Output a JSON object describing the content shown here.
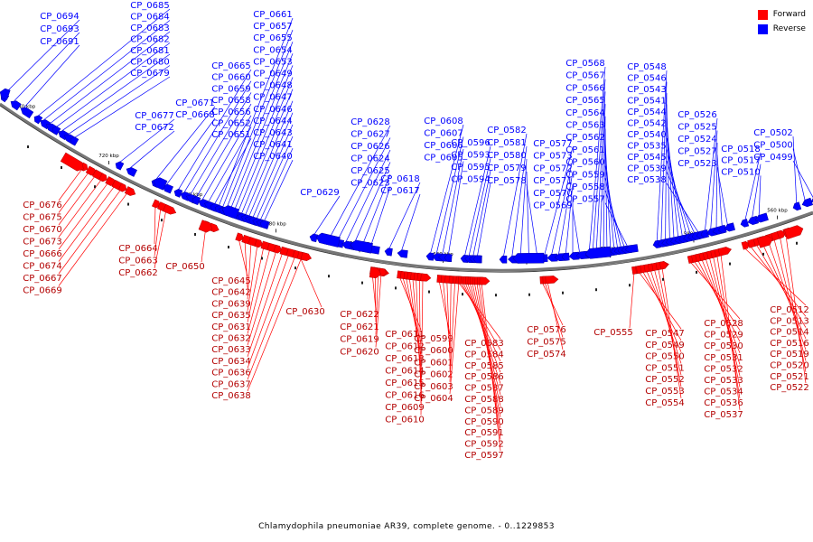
{
  "caption": "Chlamydophila pneumoniae AR39, complete genome. - 0..1229853",
  "legend": [
    {
      "label": "Forward",
      "color": "#ff0000"
    },
    {
      "label": "Reverse",
      "color": "#0000ff"
    }
  ],
  "colors": {
    "forward": "#ff0000",
    "reverse": "#0000ff",
    "forward_dark": "#b30000",
    "reverse_dark": "#0000a8",
    "backbone": "#777777"
  },
  "scale_ticks": [
    "740 kbp",
    "720 kbp",
    "700 kbp",
    "680 kbp",
    "660 kbp",
    "640 kbp",
    "620 kbp",
    "600 kbp",
    "580 kbp",
    "560 kbp"
  ],
  "reverse_groups": [
    [
      "CP_0694",
      "CP_0693",
      "CP_0691"
    ],
    [
      "CP_0685",
      "CP_0684",
      "CP_0683",
      "CP_0682",
      "CP_0681",
      "CP_0680",
      "CP_0679"
    ],
    [
      "CP_0677",
      "CP_0672"
    ],
    [
      "CP_0671",
      "CP_0668"
    ],
    [
      "CP_0665",
      "CP_0660",
      "CP_0659",
      "CP_0658",
      "CP_0656",
      "CP_0652",
      "CP_0651"
    ],
    [
      "CP_0661",
      "CP_0657",
      "CP_0655",
      "CP_0654",
      "CP_0653",
      "CP_0649",
      "CP_0648",
      "CP_0647",
      "CP_0646",
      "CP_0644",
      "CP_0643",
      "CP_0641",
      "CP_0640"
    ],
    [
      "CP_0629"
    ],
    [
      "CP_0628",
      "CP_0627",
      "CP_0626",
      "CP_0624",
      "CP_0625",
      "CP_0623"
    ],
    [
      "CP_0618",
      "CP_0617"
    ],
    [
      "CP_0608",
      "CP_0607",
      "CP_0606",
      "CP_0605"
    ],
    [
      "CP_0596",
      "CP_0593",
      "CP_0595",
      "CP_0594"
    ],
    [
      "CP_0582",
      "CP_0581",
      "CP_0580",
      "CP_0579",
      "CP_0578"
    ],
    [
      "CP_0577",
      "CP_0573",
      "CP_0572",
      "CP_0571",
      "CP_0570",
      "CP_0569"
    ],
    [
      "CP_0568",
      "CP_0567",
      "CP_0566",
      "CP_0565",
      "CP_0564",
      "CP_0563",
      "CP_0562",
      "CP_0561",
      "CP_0560",
      "CP_0559",
      "CP_0558",
      "CP_0557"
    ],
    [
      "CP_0548",
      "CP_0546",
      "CP_0543",
      "CP_0541",
      "CP_0544",
      "CP_0542",
      "CP_0540",
      "CP_0535",
      "CP_0545",
      "CP_0539",
      "CP_0538"
    ],
    [
      "CP_0526",
      "CP_0525",
      "CP_0524",
      "CP_0527",
      "CP_0523"
    ],
    [
      "CP_0518",
      "CP_0517",
      "CP_0510"
    ],
    [
      "CP_0502",
      "CP_0500",
      "CP_0499"
    ]
  ],
  "forward_groups": [
    [
      "CP_0676",
      "CP_0675",
      "CP_0670",
      "CP_0673",
      "CP_0666",
      "CP_0674",
      "CP_0667",
      "CP_0669"
    ],
    [
      "CP_0664",
      "CP_0663",
      "CP_0662"
    ],
    [
      "CP_0650"
    ],
    [
      "CP_0645",
      "CP_0642",
      "CP_0639",
      "CP_0635",
      "CP_0631",
      "CP_0632",
      "CP_0633",
      "CP_0634",
      "CP_0636",
      "CP_0637",
      "CP_0638"
    ],
    [
      "CP_0630"
    ],
    [
      "CP_0622",
      "CP_0621",
      "CP_0619",
      "CP_0620"
    ],
    [
      "CP_0611",
      "CP_0612",
      "CP_0613",
      "CP_0614",
      "CP_0615",
      "CP_0616",
      "CP_0609",
      "CP_0610"
    ],
    [
      "CP_0599",
      "CP_0600",
      "CP_0601",
      "CP_0602",
      "CP_0603",
      "CP_0604"
    ],
    [
      "CP_0583",
      "CP_0584",
      "CP_0585",
      "CP_0586",
      "CP_0587",
      "CP_0588",
      "CP_0589",
      "CP_0590",
      "CP_0591",
      "CP_0592",
      "CP_0597"
    ],
    [
      "CP_0576",
      "CP_0575",
      "CP_0574"
    ],
    [
      "CP_0555"
    ],
    [
      "CP_0547",
      "CP_0549",
      "CP_0550",
      "CP_0551",
      "CP_0552",
      "CP_0553",
      "CP_0554"
    ],
    [
      "CP_0528",
      "CP_0529",
      "CP_0530",
      "CP_0531",
      "CP_0532",
      "CP_0533",
      "CP_0534",
      "CP_0536",
      "CP_0537"
    ],
    [
      "CP_0512",
      "CP_0513",
      "CP_0514",
      "CP_0516",
      "CP_0519",
      "CP_0520",
      "CP_0521",
      "CP_0522"
    ]
  ]
}
